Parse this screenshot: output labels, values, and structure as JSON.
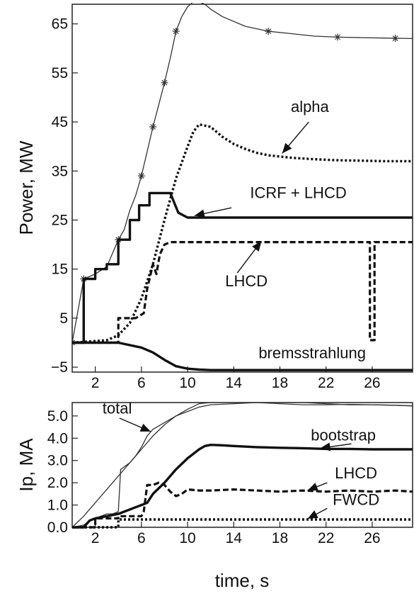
{
  "chart_data": [
    {
      "type": "line",
      "ylabel": "Power, MW",
      "xlabel": "",
      "xlim": [
        0,
        29.5
      ],
      "ylim": [
        -6,
        69
      ],
      "x_ticks": [
        2,
        6,
        10,
        14,
        18,
        22,
        26
      ],
      "x_tick_labels": [
        "2",
        "6",
        "10",
        "14",
        "18",
        "22",
        "26"
      ],
      "y_ticks": [
        -5,
        5,
        15,
        25,
        35,
        45,
        55,
        65
      ],
      "y_tick_labels": [
        "−5",
        "5",
        "15",
        "25",
        "35",
        "45",
        "55",
        "65"
      ],
      "series": [
        {
          "style": "thin-star",
          "x": [
            0,
            1,
            1.5,
            2,
            3,
            4,
            4.5,
            5,
            5.5,
            6,
            6.5,
            7,
            7.5,
            8,
            8.5,
            9,
            9.5,
            10,
            10.5,
            11,
            11.5,
            12,
            13,
            15,
            17,
            19,
            21,
            23,
            25,
            27,
            29.5
          ],
          "y": [
            0,
            13,
            13.5,
            14,
            15.5,
            21,
            23,
            27,
            30,
            34,
            39,
            44,
            48.5,
            53,
            58,
            63.5,
            66.5,
            68.5,
            69.5,
            69.5,
            69,
            68,
            66.5,
            64.5,
            63.5,
            63,
            62.5,
            62.3,
            62.2,
            62.1,
            62
          ],
          "markers_x": [
            0,
            1,
            4,
            6,
            7,
            8,
            9,
            17,
            23,
            28
          ]
        },
        {
          "style": "bold-dotted",
          "name": "alpha",
          "x": [
            0,
            3,
            4,
            5,
            6,
            7,
            8,
            9,
            10,
            10.5,
            11,
            12,
            13,
            14,
            15,
            16,
            17,
            19,
            21,
            23,
            25,
            27,
            29.5
          ],
          "y": [
            0,
            0.5,
            1.5,
            4,
            9,
            16,
            25,
            33.5,
            40,
            43,
            44.5,
            44,
            42,
            40.5,
            39.5,
            38.7,
            38.2,
            37.7,
            37.4,
            37.2,
            37.1,
            37,
            37
          ]
        },
        {
          "style": "bold-solid",
          "name": "ICRF + LHCD",
          "x": [
            0,
            1,
            1,
            2,
            2,
            3,
            3,
            4,
            4,
            5,
            5,
            5.8,
            5.8,
            6.7,
            6.7,
            7.5,
            7.5,
            8.5,
            9.2,
            10,
            29.5
          ],
          "y": [
            0,
            0,
            13,
            13,
            15,
            15,
            16,
            16,
            21,
            21,
            25,
            25,
            28,
            28,
            30.5,
            30.5,
            30.5,
            30.5,
            26.5,
            25.5,
            25.5
          ]
        },
        {
          "style": "bold-dashed",
          "name": "LHCD",
          "x": [
            0,
            4,
            4,
            5.5,
            5.5,
            6.2,
            6.5,
            7,
            7.3,
            7.6,
            8,
            8.5,
            8.5,
            25.8,
            25.8,
            26.2,
            26.2,
            29.5
          ],
          "y": [
            0,
            0,
            5,
            5,
            5,
            6,
            11,
            16,
            14,
            18,
            20,
            20.5,
            20.5,
            20.5,
            0.5,
            0.5,
            20.5,
            20.5
          ]
        },
        {
          "style": "bold-solid",
          "name": "bremsstrahlung",
          "x": [
            0,
            4,
            6,
            7,
            8,
            9,
            10,
            11,
            12,
            13,
            14,
            16,
            29.5
          ],
          "y": [
            0,
            0,
            -1,
            -2,
            -3.5,
            -4.8,
            -5.3,
            -5.5,
            -5.6,
            -5.6,
            -5.6,
            -5.6,
            -5.6
          ]
        }
      ],
      "annotations": [
        {
          "text": "alpha",
          "x": 20.6,
          "y": 47
        },
        {
          "text": "ICRF + LHCD",
          "x": 19.6,
          "y": 29.5
        },
        {
          "text": "LHCD",
          "x": 15.1,
          "y": 11.5
        },
        {
          "text": "bremsstrahlung",
          "x": 20.8,
          "y": -3.2
        }
      ]
    },
    {
      "type": "line",
      "ylabel": "Ip, MA",
      "xlabel": "time, s",
      "xlim": [
        0,
        29.5
      ],
      "ylim": [
        0,
        5.6
      ],
      "x_ticks": [
        2,
        6,
        10,
        14,
        18,
        22,
        26
      ],
      "x_tick_labels": [
        "2",
        "6",
        "10",
        "14",
        "18",
        "22",
        "26"
      ],
      "y_ticks": [
        0,
        1,
        2,
        3,
        4,
        5
      ],
      "y_tick_labels": [
        "0.0",
        "1.0",
        "2.0",
        "3.0",
        "4.0",
        "5.0"
      ],
      "series": [
        {
          "style": "thin-solid",
          "name": "total",
          "x": [
            0,
            1,
            2,
            3,
            4,
            5,
            6,
            7,
            8,
            9,
            10,
            11,
            12,
            14,
            16,
            18,
            20,
            22,
            24,
            26,
            28,
            29.5
          ],
          "y": [
            0,
            0.5,
            1.1,
            1.7,
            2.3,
            2.9,
            3.5,
            4.1,
            4.6,
            5.0,
            5.3,
            5.55,
            5.6,
            5.6,
            5.6,
            5.55,
            5.5,
            5.5,
            5.52,
            5.5,
            5.48,
            5.45
          ]
        },
        {
          "style": "thin-solid",
          "x": [
            0,
            1,
            1.5,
            2,
            3,
            3.5,
            4,
            4.2,
            5,
            5.5,
            6,
            6.5,
            7,
            8,
            9,
            10,
            11,
            12,
            14,
            16,
            18,
            20,
            22,
            24,
            26,
            28,
            29.5
          ],
          "y": [
            0,
            0.1,
            0.3,
            0.4,
            0.6,
            0.6,
            0.7,
            2.6,
            2.9,
            3.2,
            3.6,
            4.1,
            4.4,
            4.7,
            5.0,
            5.2,
            5.4,
            5.5,
            5.55,
            5.6,
            5.6,
            5.6,
            5.55,
            5.5,
            5.5,
            5.48,
            5.45
          ]
        },
        {
          "style": "bold-solid",
          "name": "bootstrap",
          "x": [
            0,
            1,
            1.5,
            2,
            3,
            4,
            5,
            5.5,
            6,
            6.5,
            7,
            8,
            9,
            10,
            11,
            11.5,
            12,
            13,
            14,
            16,
            18,
            20,
            22,
            24,
            26,
            28,
            29.5
          ],
          "y": [
            0,
            0,
            0.3,
            0.4,
            0.5,
            0.6,
            0.8,
            0.9,
            1.0,
            1.1,
            1.5,
            2.0,
            2.6,
            3.1,
            3.5,
            3.65,
            3.7,
            3.68,
            3.65,
            3.6,
            3.57,
            3.55,
            3.52,
            3.52,
            3.5,
            3.5,
            3.5
          ]
        },
        {
          "style": "bold-dashed",
          "name": "LHCD",
          "x": [
            0,
            2,
            2,
            4,
            4,
            6,
            6.2,
            6.5,
            7,
            7.5,
            8,
            8.5,
            9,
            9.5,
            10,
            11,
            12,
            14,
            16,
            18,
            20,
            22,
            24,
            26,
            28,
            29.5
          ],
          "y": [
            0,
            0,
            0.4,
            0.4,
            0.5,
            0.5,
            0.7,
            1.9,
            1.9,
            2.0,
            1.9,
            1.6,
            1.4,
            1.5,
            1.7,
            1.65,
            1.65,
            1.7,
            1.65,
            1.6,
            1.65,
            1.6,
            1.65,
            1.6,
            1.65,
            1.6
          ]
        },
        {
          "style": "bold-dotted",
          "name": "FWCD",
          "x": [
            0,
            4,
            4,
            29.5
          ],
          "y": [
            0,
            0,
            0.35,
            0.35
          ]
        }
      ],
      "annotations": [
        {
          "text": "total",
          "x": 3.9,
          "y": 5.1
        },
        {
          "text": "bootstrap",
          "x": 23.5,
          "y": 3.9
        },
        {
          "text": "LHCD",
          "x": 24.6,
          "y": 2.2
        },
        {
          "text": "FWCD",
          "x": 24.6,
          "y": 1.0
        }
      ]
    }
  ]
}
